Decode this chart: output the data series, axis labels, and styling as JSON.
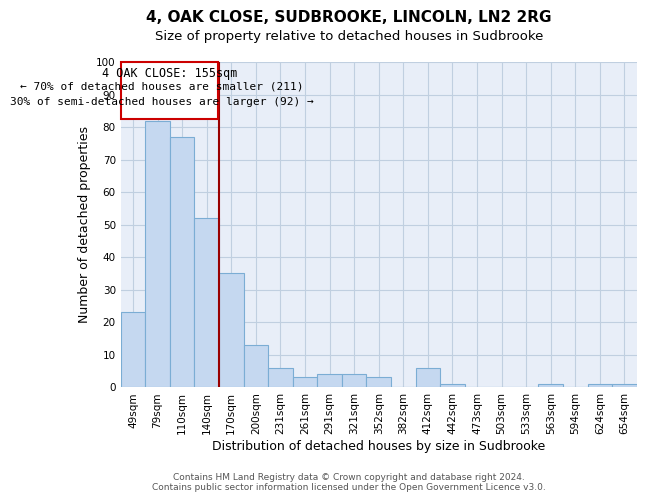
{
  "title": "4, OAK CLOSE, SUDBROOKE, LINCOLN, LN2 2RG",
  "subtitle": "Size of property relative to detached houses in Sudbrooke",
  "xlabel": "Distribution of detached houses by size in Sudbrooke",
  "ylabel": "Number of detached properties",
  "categories": [
    "49sqm",
    "79sqm",
    "110sqm",
    "140sqm",
    "170sqm",
    "200sqm",
    "231sqm",
    "261sqm",
    "291sqm",
    "321sqm",
    "352sqm",
    "382sqm",
    "412sqm",
    "442sqm",
    "473sqm",
    "503sqm",
    "533sqm",
    "563sqm",
    "594sqm",
    "624sqm",
    "654sqm"
  ],
  "values": [
    23,
    82,
    77,
    52,
    35,
    13,
    6,
    3,
    4,
    4,
    3,
    0,
    6,
    1,
    0,
    0,
    0,
    1,
    0,
    1,
    1
  ],
  "bar_color": "#c5d8f0",
  "bar_edge_color": "#7badd4",
  "bar_edge_width": 0.8,
  "reference_line_color": "#990000",
  "reference_line_label": "4 OAK CLOSE: 155sqm",
  "annotation_line1": "← 70% of detached houses are smaller (211)",
  "annotation_line2": "30% of semi-detached houses are larger (92) →",
  "box_color": "#cc0000",
  "ylim": [
    0,
    100
  ],
  "yticks": [
    0,
    10,
    20,
    30,
    40,
    50,
    60,
    70,
    80,
    90,
    100
  ],
  "grid_color": "#c0cfe0",
  "bg_color": "#e8eef8",
  "footer_line1": "Contains HM Land Registry data © Crown copyright and database right 2024.",
  "footer_line2": "Contains public sector information licensed under the Open Government Licence v3.0.",
  "title_fontsize": 11,
  "subtitle_fontsize": 9.5,
  "axis_label_fontsize": 9,
  "tick_fontsize": 7.5,
  "footer_fontsize": 6.5
}
